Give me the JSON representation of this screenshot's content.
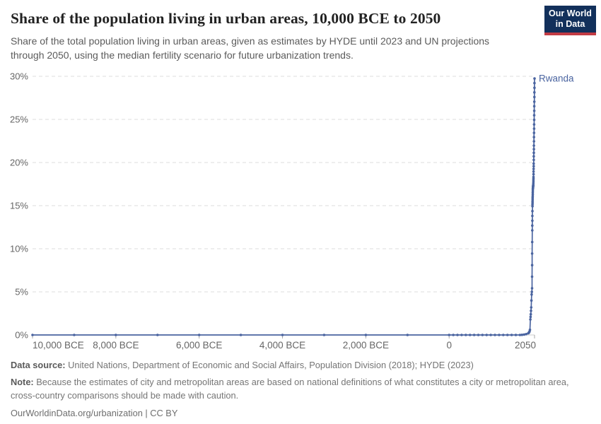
{
  "header": {
    "title": "Share of the population living in urban areas, 10,000 BCE to 2050",
    "subtitle": "Share of the total population living in urban areas, given as estimates by HYDE until 2023 and UN projections through 2050, using the median fertility scenario for future urbanization trends.",
    "logo": {
      "line1": "Our World",
      "line2": "in Data",
      "bg": "#12305b",
      "bar": "#c23b44"
    }
  },
  "chart_data": {
    "type": "line",
    "title": "Share of the population living in urban areas, 10,000 BCE to 2050",
    "xlabel": "",
    "ylabel": "",
    "x_range": [
      -10000,
      2050
    ],
    "ylim": [
      0,
      30
    ],
    "grid": "dashed-horizontal",
    "legend_position": "end-of-line-label",
    "end_label": "Rwanda",
    "y_axis": {
      "tick_values": [
        0,
        5,
        10,
        15,
        20,
        25,
        30
      ],
      "tick_format": "percent"
    },
    "x_axis": {
      "ticks": [
        {
          "value": -10000,
          "label": "10,000 BCE",
          "anchor": "start"
        },
        {
          "value": -8000,
          "label": "8,000 BCE",
          "anchor": "middle"
        },
        {
          "value": -6000,
          "label": "6,000 BCE",
          "anchor": "middle"
        },
        {
          "value": -4000,
          "label": "4,000 BCE",
          "anchor": "middle"
        },
        {
          "value": -2000,
          "label": "2,000 BCE",
          "anchor": "middle"
        },
        {
          "value": 0,
          "label": "0",
          "anchor": "middle"
        },
        {
          "value": 2050,
          "label": "2050",
          "anchor": "end"
        }
      ]
    },
    "series": [
      {
        "name": "Rwanda",
        "color": "#4a64a0",
        "points": [
          [
            -10000,
            0
          ],
          [
            -9000,
            0
          ],
          [
            -8000,
            0
          ],
          [
            -7000,
            0
          ],
          [
            -6000,
            0
          ],
          [
            -5000,
            0
          ],
          [
            -4000,
            0
          ],
          [
            -3000,
            0
          ],
          [
            -2000,
            0
          ],
          [
            -1000,
            0
          ],
          [
            0,
            0
          ],
          [
            100,
            0
          ],
          [
            200,
            0
          ],
          [
            300,
            0
          ],
          [
            400,
            0
          ],
          [
            500,
            0
          ],
          [
            600,
            0
          ],
          [
            700,
            0
          ],
          [
            800,
            0
          ],
          [
            900,
            0
          ],
          [
            1000,
            0
          ],
          [
            1100,
            0
          ],
          [
            1200,
            0
          ],
          [
            1300,
            0
          ],
          [
            1400,
            0
          ],
          [
            1500,
            0
          ],
          [
            1600,
            0
          ],
          [
            1700,
            0
          ],
          [
            1750,
            0.02
          ],
          [
            1800,
            0.05
          ],
          [
            1850,
            0.1
          ],
          [
            1900,
            0.2
          ],
          [
            1910,
            0.25
          ],
          [
            1920,
            0.3
          ],
          [
            1930,
            0.4
          ],
          [
            1940,
            0.6
          ],
          [
            1950,
            1.8
          ],
          [
            1955,
            2.1
          ],
          [
            1960,
            2.4
          ],
          [
            1965,
            2.8
          ],
          [
            1970,
            3.2
          ],
          [
            1975,
            4.0
          ],
          [
            1980,
            4.7
          ],
          [
            1985,
            5.0
          ],
          [
            1990,
            5.42
          ],
          [
            1991,
            6.76
          ],
          [
            1992,
            8.1
          ],
          [
            1993,
            9.44
          ],
          [
            1994,
            10.78
          ],
          [
            1995,
            12.13
          ],
          [
            1996,
            12.69
          ],
          [
            1997,
            13.25
          ],
          [
            1998,
            13.81
          ],
          [
            1999,
            14.37
          ],
          [
            2000,
            14.93
          ],
          [
            2001,
            15.12
          ],
          [
            2002,
            15.31
          ],
          [
            2003,
            15.5
          ],
          [
            2004,
            15.7
          ],
          [
            2005,
            15.89
          ],
          [
            2006,
            16.09
          ],
          [
            2007,
            16.29
          ],
          [
            2008,
            16.5
          ],
          [
            2009,
            16.7
          ],
          [
            2010,
            16.91
          ],
          [
            2011,
            16.97
          ],
          [
            2012,
            17.03
          ],
          [
            2013,
            17.09
          ],
          [
            2014,
            17.15
          ],
          [
            2015,
            17.21
          ],
          [
            2016,
            17.25
          ],
          [
            2017,
            17.3
          ],
          [
            2018,
            17.34
          ],
          [
            2019,
            17.39
          ],
          [
            2020,
            17.43
          ],
          [
            2021,
            17.61
          ],
          [
            2022,
            17.79
          ],
          [
            2023,
            17.97
          ],
          [
            2024,
            18.15
          ],
          [
            2025,
            18.33
          ],
          [
            2026,
            18.64
          ],
          [
            2027,
            18.95
          ],
          [
            2028,
            19.26
          ],
          [
            2029,
            19.57
          ],
          [
            2030,
            19.88
          ],
          [
            2031,
            20.3
          ],
          [
            2032,
            20.72
          ],
          [
            2033,
            21.13
          ],
          [
            2034,
            21.55
          ],
          [
            2035,
            21.97
          ],
          [
            2036,
            22.46
          ],
          [
            2037,
            22.95
          ],
          [
            2038,
            23.44
          ],
          [
            2039,
            23.93
          ],
          [
            2040,
            24.42
          ],
          [
            2041,
            24.95
          ],
          [
            2042,
            25.48
          ],
          [
            2043,
            26.0
          ],
          [
            2044,
            26.53
          ],
          [
            2045,
            27.06
          ],
          [
            2046,
            27.6
          ],
          [
            2047,
            28.14
          ],
          [
            2048,
            28.67
          ],
          [
            2049,
            29.21
          ],
          [
            2050,
            29.75
          ]
        ]
      }
    ],
    "colors": {
      "line": "#4a64a0",
      "gridline": "#dcdcdc",
      "axis": "#cccccc",
      "tick": "#a9a9a9",
      "tick_label": "#666666"
    }
  },
  "footer": {
    "source_label": "Data source:",
    "source_text": " United Nations, Department of Economic and Social Affairs, Population Division (2018); HYDE (2023)",
    "note_label": "Note:",
    "note_text": " Because the estimates of city and metropolitan areas are based on national definitions of what constitutes a city or metropolitan area, cross-country comparisons should be made with caution.",
    "link_text": "OurWorldinData.org/urbanization | CC BY"
  }
}
